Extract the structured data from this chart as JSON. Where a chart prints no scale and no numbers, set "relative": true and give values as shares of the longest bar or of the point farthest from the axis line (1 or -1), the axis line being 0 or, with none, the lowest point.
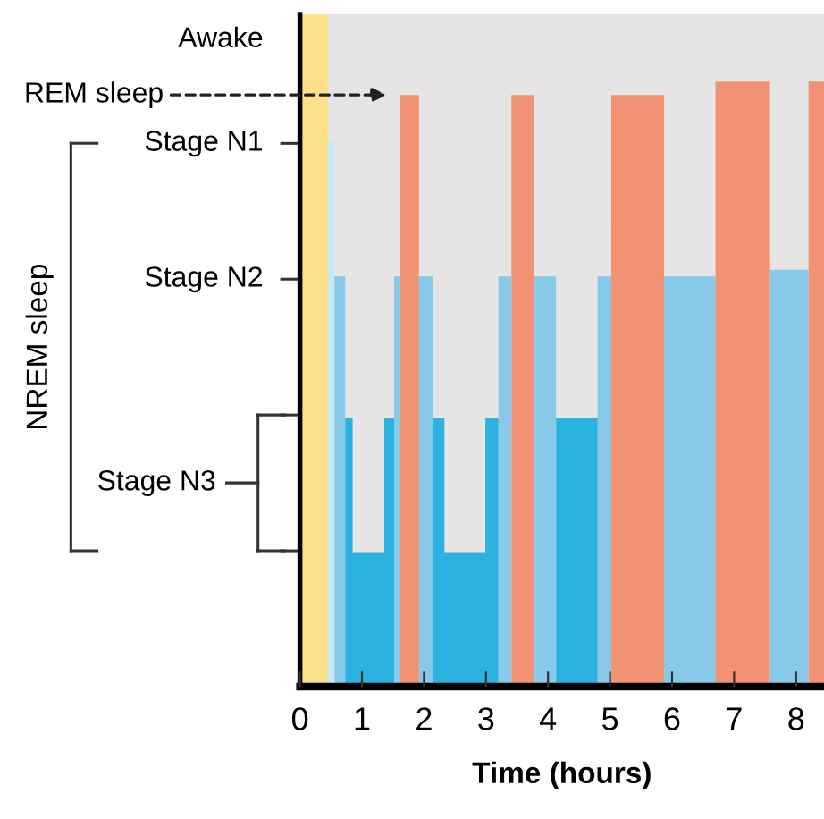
{
  "chart_data": {
    "type": "area",
    "relative": true,
    "xlabel": "Time (hours)",
    "series": [
      {
        "color": "#fde08a",
        "x": [
          0,
          0.45
        ],
        "values": [
          1,
          1
        ]
      },
      {
        "color": "#c8e8f6",
        "x": [
          0.45,
          0.56
        ],
        "values": [
          0.81,
          0.81
        ]
      },
      {
        "color": "#86c9e8",
        "x": [
          0.56,
          0.73,
          1.0,
          1.52,
          1.62,
          1.7,
          1.92,
          2.15,
          2.5,
          3.2,
          3.41,
          3.5,
          3.78,
          4.13,
          4.5,
          4.8,
          5.02,
          5.5,
          5.87,
          6.7,
          7.0,
          7.58,
          8.2
        ],
        "values": [
          0.61,
          0.61,
          null,
          0.61,
          0.61,
          null,
          0.61,
          0.61,
          null,
          0.61,
          0.61,
          null,
          0.61,
          0.61,
          null,
          0.61,
          0.61,
          null,
          0.61,
          0.61,
          null,
          0.62,
          0.62
        ]
      },
      {
        "color": "#2cb2df",
        "x": [
          0.73,
          0.85,
          0.85,
          1.36,
          1.36,
          1.52,
          1.6,
          2.15,
          2.33,
          2.33,
          2.99,
          2.99,
          3.2,
          3.5,
          4.13,
          4.8
        ],
        "values": [
          0.4,
          0.4,
          0.2,
          0.2,
          0.4,
          0.4,
          null,
          0.4,
          0.4,
          0.2,
          0.2,
          0.4,
          0.4,
          null,
          0.4,
          0.4
        ]
      },
      {
        "color": "#f29275",
        "x": [
          1.62,
          1.92,
          2.5,
          3.41,
          3.78,
          4.5,
          5.02,
          5.87,
          6.2,
          6.7,
          7.58,
          8.0,
          8.2,
          8.45
        ],
        "values": [
          0.88,
          0.88,
          null,
          0.88,
          0.88,
          null,
          0.88,
          0.88,
          null,
          0.9,
          0.9,
          null,
          0.9,
          0.9
        ]
      }
    ],
    "xlim": [
      0,
      8.45
    ],
    "xticks": [
      0,
      1,
      2,
      3,
      4,
      5,
      6,
      7,
      8
    ],
    "annotations": [
      "Awake",
      "REM sleep",
      "Stage N1",
      "Stage N2",
      "Stage N3",
      "NREM sleep"
    ],
    "grid": false,
    "legend": false
  }
}
